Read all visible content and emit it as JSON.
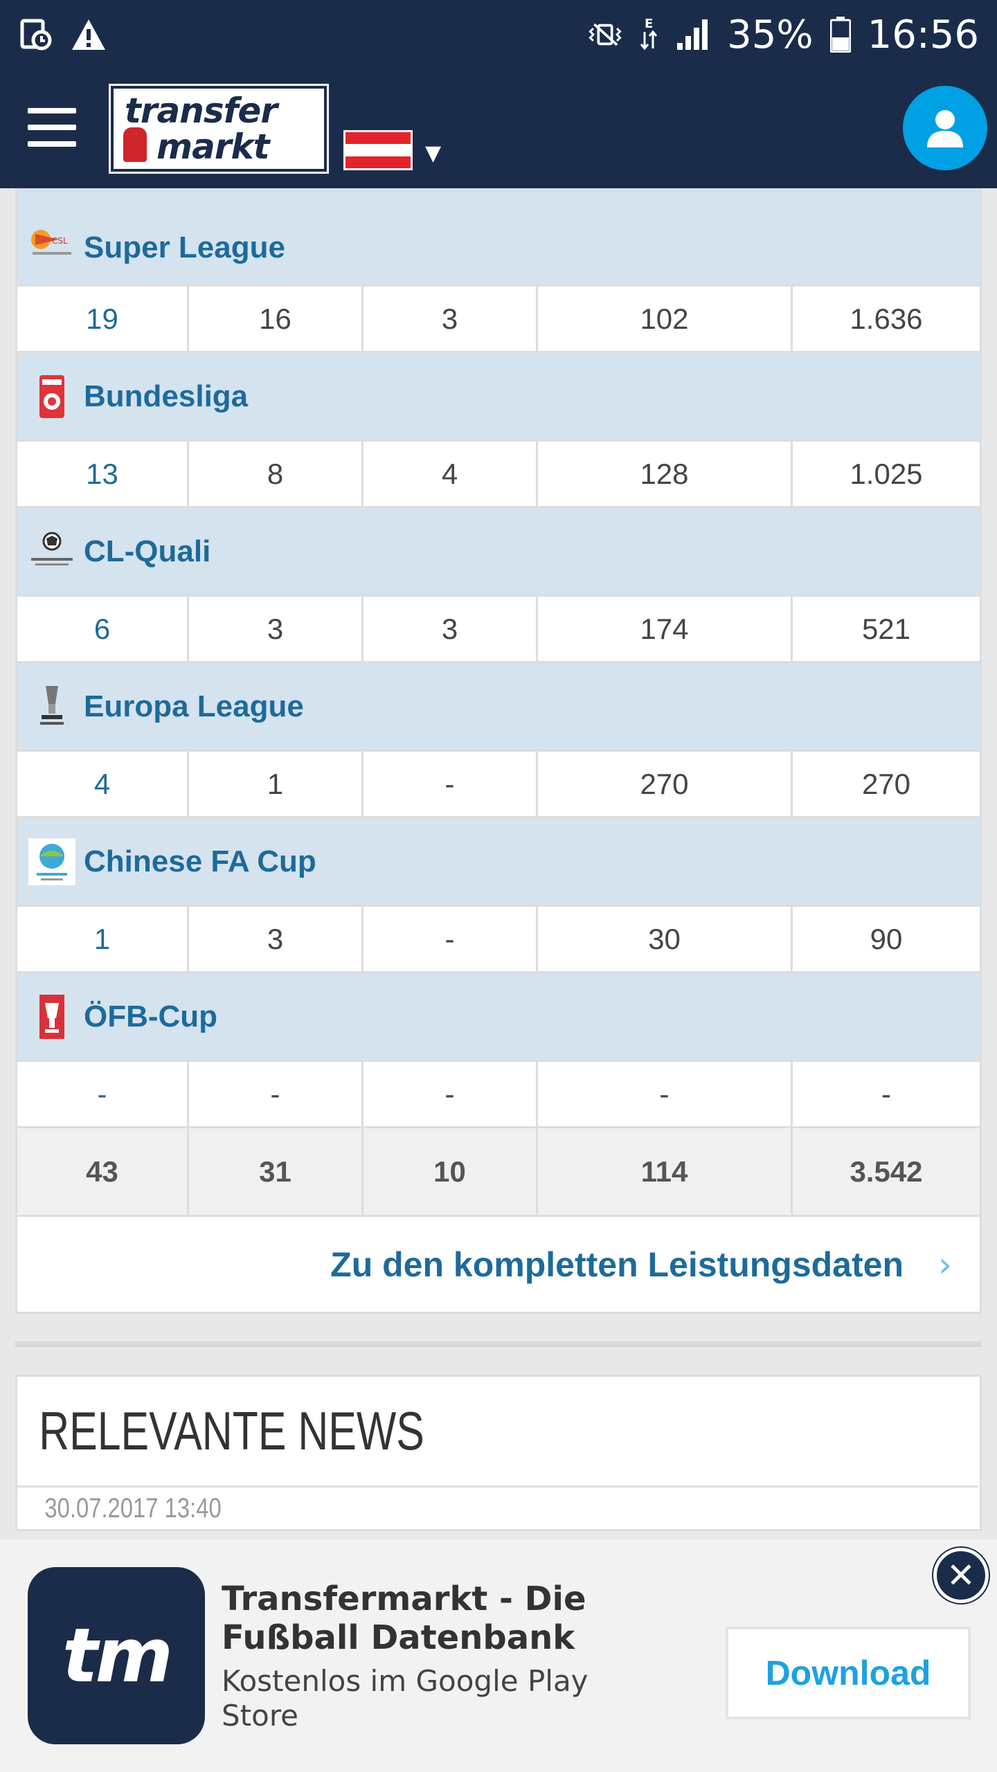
{
  "status_bar": {
    "battery": "35%",
    "time": "16:56",
    "network_type": "E",
    "colors": {
      "background": "#1b2c4b"
    }
  },
  "header": {
    "logo_line1": "transfer",
    "logo_line2": "markt",
    "flag": "austria-flag"
  },
  "competitions": [
    {
      "name": "Super League",
      "icon": "super-league-logo",
      "stats": [
        "19",
        "16",
        "3",
        "102",
        "1.636"
      ]
    },
    {
      "name": "Bundesliga",
      "icon": "bundesliga-logo",
      "stats": [
        "13",
        "8",
        "4",
        "128",
        "1.025"
      ]
    },
    {
      "name": "CL-Quali",
      "icon": "champions-league-logo",
      "stats": [
        "6",
        "3",
        "3",
        "174",
        "521"
      ]
    },
    {
      "name": "Europa League",
      "icon": "europa-league-logo",
      "stats": [
        "4",
        "1",
        "-",
        "270",
        "270"
      ]
    },
    {
      "name": "Chinese FA Cup",
      "icon": "chinese-fa-cup-logo",
      "stats": [
        "1",
        "3",
        "-",
        "30",
        "90"
      ]
    },
    {
      "name": "ÖFB-Cup",
      "icon": "ofb-cup-logo",
      "stats": [
        "-",
        "-",
        "-",
        "-",
        "-"
      ]
    }
  ],
  "totals": [
    "43",
    "31",
    "10",
    "114",
    "3.542"
  ],
  "more_link": "Zu den kompletten Leistungsdaten",
  "news": {
    "title": "RELEVANTE NEWS",
    "date": "30.07.2017 13:40"
  },
  "ad": {
    "icon_text": "tm",
    "title": "Transfermarkt - Die Fußball Datenbank",
    "subtitle": "Kostenlos im Google Play Store",
    "download_label": "Download"
  }
}
